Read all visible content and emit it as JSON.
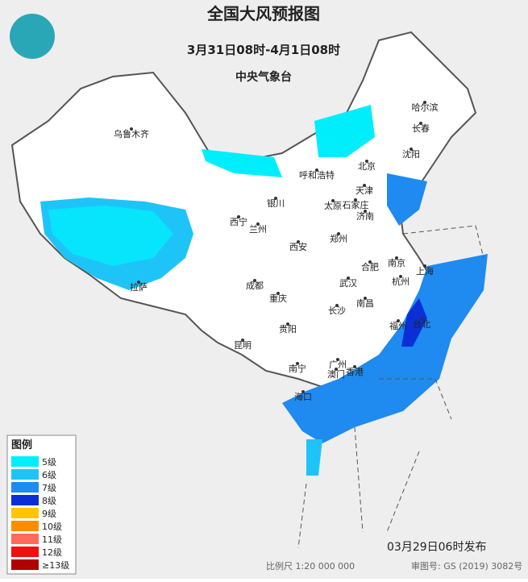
{
  "header": {
    "title": "全国大风预报图",
    "period": "3月31日08时-4月1日08时",
    "agency": "中央气象台"
  },
  "legend": {
    "title": "图例",
    "items": [
      {
        "label": "5级",
        "color": "#00eefc"
      },
      {
        "label": "6级",
        "color": "#1ec4f8"
      },
      {
        "label": "7级",
        "color": "#1f8af0"
      },
      {
        "label": "8级",
        "color": "#0b2fd6"
      },
      {
        "label": "9级",
        "color": "#ffc600"
      },
      {
        "label": "10级",
        "color": "#ff8c00"
      },
      {
        "label": "11级",
        "color": "#ff6a5a"
      },
      {
        "label": "12级",
        "color": "#f01010"
      },
      {
        "label": "≥13级",
        "color": "#b00000"
      }
    ]
  },
  "cities": [
    "乌鲁木齐",
    "哈尔滨",
    "长春",
    "沈阳",
    "北京",
    "呼和浩特",
    "天津",
    "银川",
    "太原",
    "石家庄",
    "济南",
    "西宁",
    "兰州",
    "郑州",
    "西安",
    "合肥",
    "南京",
    "上海",
    "杭州",
    "成都",
    "武汉",
    "重庆",
    "南昌",
    "长沙",
    "拉萨",
    "贵阳",
    "福州",
    "台北",
    "昆明",
    "南宁",
    "广州",
    "澳门",
    "香港",
    "海口"
  ],
  "footer": {
    "issued": "03月29日06时发布",
    "scale": "比例尺 1:20 000 000",
    "approval": "审图号: GS (2019) 3082号"
  }
}
